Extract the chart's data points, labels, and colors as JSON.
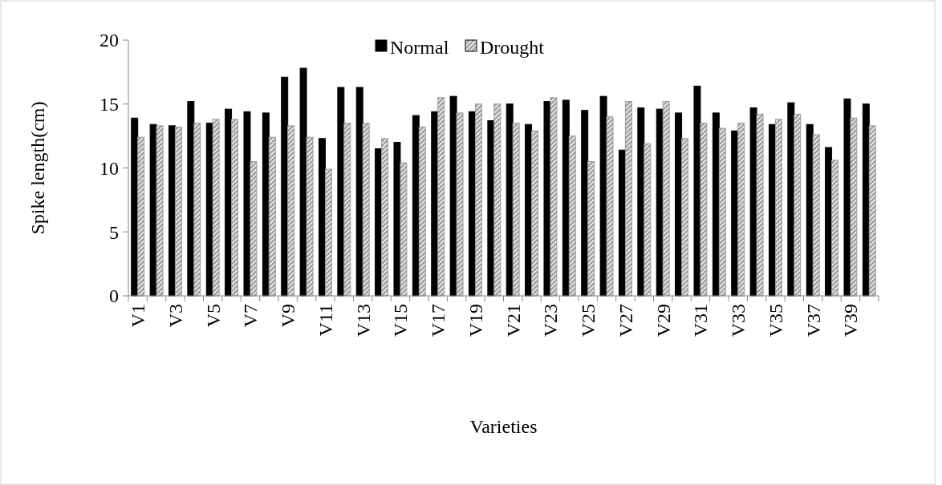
{
  "chart_data": {
    "type": "bar",
    "xlabel": "Varieties",
    "ylabel": "Spike length(cm)",
    "categories": [
      "V1",
      null,
      "V3",
      null,
      "V5",
      null,
      "V7",
      null,
      "V9",
      null,
      "V11",
      null,
      "V13",
      null,
      "V15",
      null,
      "V17",
      null,
      "V19",
      null,
      "V21",
      null,
      "V23",
      null,
      "V25",
      null,
      "V27",
      null,
      "V29",
      null,
      "V31",
      null,
      "V33",
      null,
      "V35",
      null,
      "V37",
      null,
      "V39",
      null
    ],
    "series": [
      {
        "name": "Normal",
        "color": "#000000",
        "values": [
          13.9,
          13.4,
          13.3,
          15.2,
          13.5,
          14.6,
          14.4,
          14.3,
          17.1,
          17.8,
          12.3,
          16.3,
          16.3,
          11.5,
          12.0,
          14.1,
          14.4,
          15.6,
          14.4,
          13.7,
          15.0,
          13.4,
          15.2,
          15.3,
          14.5,
          15.6,
          11.4,
          14.7,
          14.6,
          14.3,
          16.4,
          14.3,
          12.9,
          14.7,
          13.4,
          15.1,
          13.4,
          11.6,
          15.4,
          15.0
        ]
      },
      {
        "name": "Drought",
        "color": "#9a9a9a",
        "values": [
          12.4,
          13.3,
          13.2,
          13.5,
          13.8,
          13.8,
          10.5,
          12.4,
          13.3,
          12.4,
          9.9,
          13.5,
          13.5,
          12.3,
          10.4,
          13.2,
          15.5,
          14.3,
          15.0,
          15.0,
          13.5,
          12.9,
          15.5,
          12.5,
          10.5,
          14.0,
          15.2,
          11.9,
          15.2,
          12.3,
          13.5,
          13.1,
          13.5,
          14.2,
          13.8,
          14.2,
          12.6,
          10.6,
          13.9,
          13.3
        ]
      }
    ],
    "ylim": [
      0,
      20
    ],
    "yticks": [
      0,
      5,
      10,
      15,
      20
    ],
    "grid": false,
    "legend": "top"
  }
}
